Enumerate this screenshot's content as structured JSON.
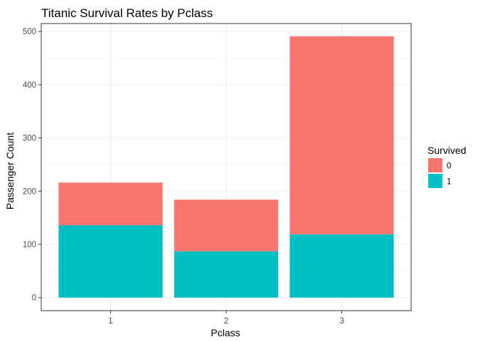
{
  "chart_data": {
    "type": "bar",
    "stacked": true,
    "title": "Titanic Survival Rates by Pclass",
    "xlabel": "Pclass",
    "ylabel": "Passenger Count",
    "categories": [
      "1",
      "2",
      "3"
    ],
    "series": [
      {
        "name": "0",
        "values": [
          80,
          97,
          372
        ],
        "color": "#F8766D"
      },
      {
        "name": "1",
        "values": [
          136,
          87,
          119
        ],
        "color": "#00BFC4"
      }
    ],
    "yticks": [
      0,
      100,
      200,
      300,
      400,
      500
    ],
    "ylim": [
      -24.5,
      515
    ],
    "grid": true,
    "legend": {
      "title": "Survived",
      "position": "right"
    }
  }
}
